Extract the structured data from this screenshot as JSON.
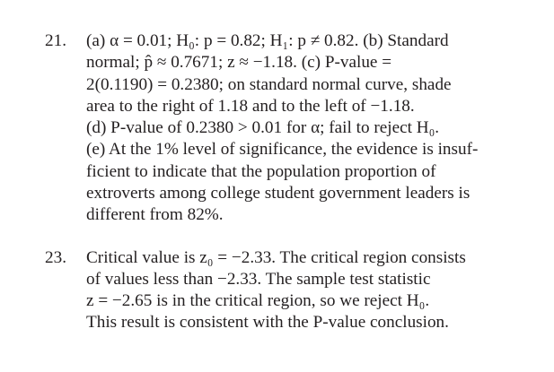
{
  "problems": [
    {
      "number": "21.",
      "lines": [
        "(a) α = 0.01; H₀: p = 0.82; H₁: p ≠ 0.82.   (b) Standard",
        "normal; p̂ ≈ 0.7671; z ≈ −1.18.   (c) P-value =",
        "2(0.1190) = 0.2380; on standard normal curve, shade",
        "area to the right of 1.18 and to the left of −1.18.",
        "(d) P-value of 0.2380 > 0.01 for α; fail to reject H₀.",
        "(e)  At the 1% level of significance, the evidence is insuf-",
        "ficient to indicate that the population proportion of",
        "extroverts among college student government leaders is",
        "different from 82%."
      ]
    },
    {
      "number": "23.",
      "lines": [
        "Critical value is z₀ = −2.33. The critical region consists",
        "of values less than −2.33. The sample test statistic",
        "z = −2.65 is in the critical region, so we reject H₀.",
        "This  result is consistent with the P-value conclusion."
      ]
    }
  ]
}
